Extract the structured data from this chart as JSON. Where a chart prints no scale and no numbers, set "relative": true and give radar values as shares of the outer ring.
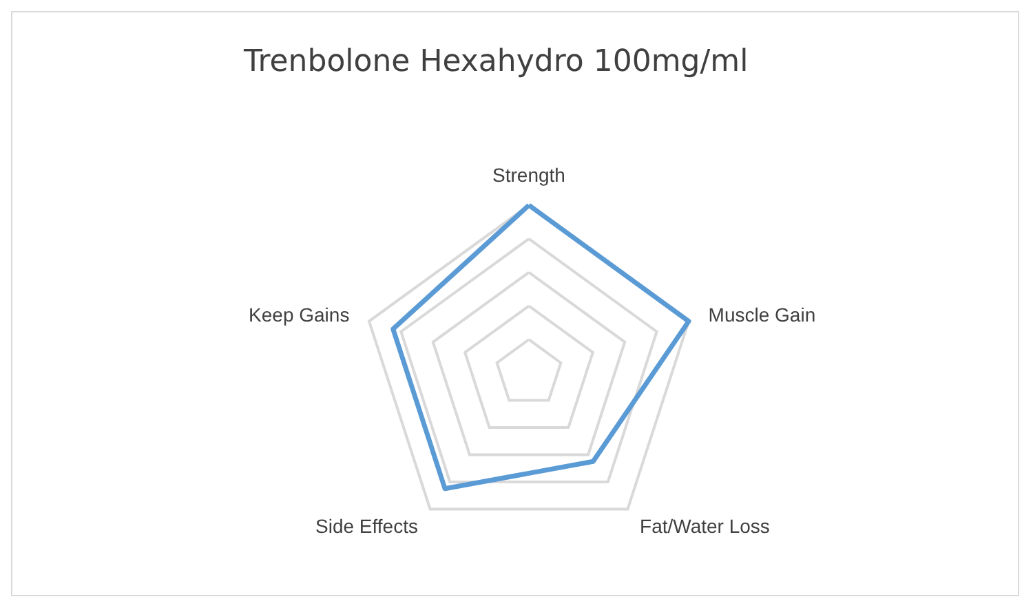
{
  "chart_data": {
    "type": "radar",
    "title": "Trenbolone Hexahydro 100mg/ml",
    "categories": [
      "Strength",
      "Muscle Gain",
      "Fat/Water Loss",
      "Side Effects",
      "Keep Gains"
    ],
    "relative": true,
    "grid": true,
    "marker": "none",
    "line_style": "solid",
    "series": [
      {
        "color": "#5b9bd5",
        "values": [
          1,
          1,
          0.65,
          0.85,
          0.85
        ]
      }
    ]
  }
}
